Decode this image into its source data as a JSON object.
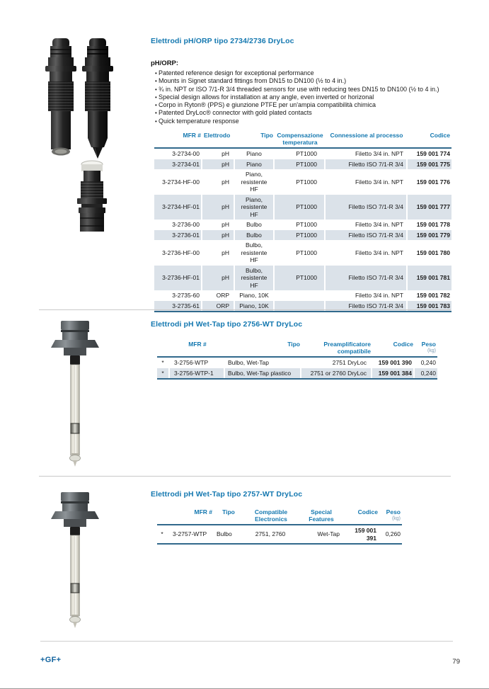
{
  "s1": {
    "title": "Elettrodi pH/ORP tipo 2734/2736 DryLoc",
    "subtitle": "pH/ORP:",
    "bullets": [
      "Patented reference design for exceptional performance",
      "Mounts in Signet standard fittings from DN15 to DN100 (½ to 4 in.)",
      "¾ in. NPT or ISO 7/1-R 3/4 threaded sensors for use with reducing tees DN15 to DN100 (½ to 4 in.)",
      "Special design allows for installation at any angle, even inverted or horizonal",
      "Corpo in Ryton® (PPS) e giunzione PTFE per un'ampia compatibilità chimica",
      "Patented DryLoc® connector with gold plated contacts",
      "Quick temperature response"
    ],
    "table": {
      "headers": {
        "mfr": "MFR #",
        "elettrodo": "Elettrodo",
        "tipo": "Tipo",
        "comp": "Compensazione\ntemperatura",
        "conn": "Connessione al processo",
        "codice": "Codice"
      },
      "rows": [
        {
          "cells": [
            "3-2734-00",
            "pH",
            "Piano",
            "PT1000",
            "Filetto 3/4 in. NPT",
            "159 001 774"
          ],
          "shaded": false
        },
        {
          "cells": [
            "3-2734-01",
            "pH",
            "Piano",
            "PT1000",
            "Filetto ISO 7/1-R 3/4",
            "159 001 775"
          ],
          "shaded": true
        },
        {
          "cells": [
            "3-2734-HF-00",
            "pH",
            "Piano,\nresistente\nHF",
            "PT1000",
            "Filetto 3/4 in. NPT",
            "159 001 776"
          ],
          "shaded": false
        },
        {
          "cells": [
            "3-2734-HF-01",
            "pH",
            "Piano,\nresistente\nHF",
            "PT1000",
            "Filetto ISO 7/1-R 3/4",
            "159 001 777"
          ],
          "shaded": true
        },
        {
          "cells": [
            "3-2736-00",
            "pH",
            "Bulbo",
            "PT1000",
            "Filetto 3/4 in. NPT",
            "159 001 778"
          ],
          "shaded": false
        },
        {
          "cells": [
            "3-2736-01",
            "pH",
            "Bulbo",
            "PT1000",
            "Filetto ISO 7/1-R 3/4",
            "159 001 779"
          ],
          "shaded": true
        },
        {
          "cells": [
            "3-2736-HF-00",
            "pH",
            "Bulbo,\nresistente\nHF",
            "PT1000",
            "Filetto 3/4 in. NPT",
            "159 001 780"
          ],
          "shaded": false
        },
        {
          "cells": [
            "3-2736-HF-01",
            "pH",
            "Bulbo,\nresistente\nHF",
            "PT1000",
            "Filetto ISO 7/1-R 3/4",
            "159 001 781"
          ],
          "shaded": true
        },
        {
          "cells": [
            "3-2735-60",
            "ORP",
            "Piano, 10K",
            "",
            "Filetto 3/4 in. NPT",
            "159 001 782"
          ],
          "shaded": false
        },
        {
          "cells": [
            "3-2735-61",
            "ORP",
            "Piano, 10K",
            "",
            "Filetto ISO 7/1-R 3/4",
            "159 001 783"
          ],
          "shaded": true
        }
      ]
    }
  },
  "s2": {
    "title": "Elettrodi pH Wet-Tap tipo 2756-WT DryLoc",
    "table": {
      "headers": {
        "mfr": "MFR #",
        "tipo": "Tipo",
        "preamp": "Preamplificatore\ncompatibile",
        "codice": "Codice",
        "peso": "Peso",
        "peso_unit": "(kg)"
      },
      "rows": [
        {
          "cells": [
            "*",
            "3-2756-WTP",
            "Bulbo, Wet-Tap",
            "2751 DryLoc",
            "159 001 390",
            "0,240"
          ],
          "shaded": false
        },
        {
          "cells": [
            "*",
            "3-2756-WTP-1",
            "Bulbo, Wet-Tap plastico",
            "2751 or 2760 DryLoc",
            "159 001 384",
            "0,240"
          ],
          "shaded": true
        }
      ]
    }
  },
  "s3": {
    "title": "Elettrodi pH Wet-Tap tipo 2757-WT DryLoc",
    "table": {
      "headers": {
        "mfr": "MFR #",
        "tipo": "Tipo",
        "compat": "Compatible\nElectronics",
        "special": "Special\nFeatures",
        "codice": "Codice",
        "peso": "Peso",
        "peso_unit": "(kg)"
      },
      "rows": [
        {
          "cells": [
            "*",
            "3-2757-WTP",
            "Bulbo",
            "2751, 2760",
            "Wet-Tap",
            "159 001 391",
            "0,260"
          ],
          "shaded": false
        }
      ]
    }
  },
  "footer": {
    "brand": "+GF+",
    "page_number": "79"
  },
  "colors": {
    "accent_blue": "#1478b0",
    "rule_blue": "#31698c",
    "row_shade": "#dbe2e9"
  }
}
